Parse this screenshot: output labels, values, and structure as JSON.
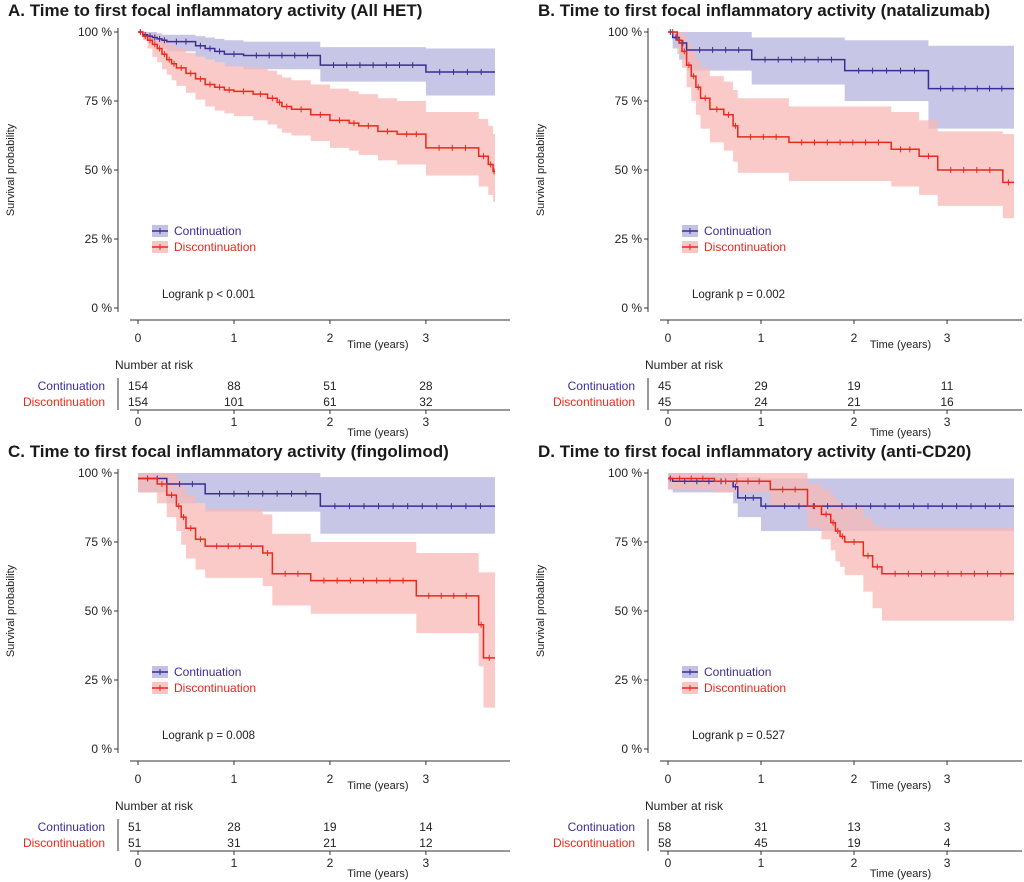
{
  "colors": {
    "continuation": "#3b2d96",
    "continuation_band": "#b4b3df",
    "discontinuation": "#e8291c",
    "discontinuation_band": "#f7b8b4",
    "axis": "#333333"
  },
  "chart_data": [
    {
      "type": "line",
      "title": "A. Time to first focal inflammatory activity (All HET)",
      "xlabel": "Time (years)",
      "ylabel": "Survival probability",
      "xlim": [
        0,
        3.75
      ],
      "ylim": [
        0,
        100
      ],
      "xticks": [
        "0",
        "1",
        "2",
        "3"
      ],
      "yticks": [
        "0 %",
        "25 %",
        "50 %",
        "75 %",
        "100 %"
      ],
      "legend": [
        "Continuation",
        "Discontinuation"
      ],
      "annotation": "Logrank p < 0.001",
      "risk_table": {
        "header": "Number at risk",
        "rows": [
          {
            "label": "Continuation",
            "values": [
              "154",
              "88",
              "51",
              "28"
            ]
          },
          {
            "label": "Discontinuation",
            "values": [
              "154",
              "101",
              "61",
              "32"
            ]
          }
        ]
      },
      "series": [
        {
          "name": "Continuation",
          "x": [
            0,
            0.05,
            0.1,
            0.15,
            0.2,
            0.25,
            0.3,
            0.6,
            0.7,
            0.8,
            0.9,
            1.1,
            1.9,
            3.0
          ],
          "y": [
            100,
            99,
            98.5,
            98,
            97.5,
            97,
            96.5,
            95,
            94,
            93,
            92,
            91.5,
            88,
            85.5
          ],
          "lower": [
            100,
            98,
            97,
            96,
            95,
            94,
            93,
            91,
            90,
            89,
            87.5,
            86.5,
            82,
            77
          ],
          "upper": [
            100,
            100,
            100,
            100,
            99.5,
            99,
            99,
            98.5,
            98,
            97.5,
            97,
            96.5,
            94.5,
            94
          ]
        },
        {
          "name": "Discontinuation",
          "x": [
            0,
            0.05,
            0.1,
            0.15,
            0.2,
            0.25,
            0.3,
            0.35,
            0.4,
            0.5,
            0.6,
            0.7,
            0.8,
            0.9,
            1.0,
            1.2,
            1.35,
            1.45,
            1.5,
            1.6,
            1.8,
            2.0,
            2.2,
            2.3,
            2.5,
            2.7,
            3.0,
            3.55,
            3.65,
            3.7
          ],
          "y": [
            100,
            98.5,
            97,
            95.5,
            94,
            92,
            90,
            88.5,
            87,
            85,
            83,
            81,
            80,
            79,
            78.5,
            77.5,
            76,
            74.5,
            73,
            72,
            70,
            68,
            67,
            66,
            64,
            63,
            58,
            55,
            52,
            49.5
          ],
          "lower": [
            100,
            97,
            94,
            91,
            89,
            86.5,
            84.5,
            82.5,
            80.5,
            78,
            75.5,
            73,
            71.5,
            70.5,
            69.5,
            68,
            66.5,
            65,
            63.5,
            62.5,
            60.5,
            58,
            57,
            55.5,
            53.5,
            52,
            48,
            44,
            41,
            38.5
          ],
          "upper": [
            100,
            100,
            99.5,
            99,
            98.5,
            97.5,
            96,
            95,
            94,
            92.5,
            91,
            90,
            89,
            88,
            87.5,
            87,
            86,
            84.5,
            83.5,
            82.5,
            81,
            79.5,
            78.5,
            77.5,
            76,
            75,
            71,
            68.5,
            66,
            63
          ]
        }
      ]
    },
    {
      "type": "line",
      "title": "B. Time to first focal inflammatory activity (natalizumab)",
      "xlabel": "Time (years)",
      "ylabel": "Survival probability",
      "xlim": [
        0,
        3.75
      ],
      "ylim": [
        0,
        100
      ],
      "xticks": [
        "0",
        "1",
        "2",
        "3"
      ],
      "yticks": [
        "0 %",
        "25 %",
        "50 %",
        "75 %",
        "100 %"
      ],
      "legend": [
        "Continuation",
        "Discontinuation"
      ],
      "annotation": "Logrank p = 0.002",
      "risk_table": {
        "header": "Number at risk",
        "rows": [
          {
            "label": "Continuation",
            "values": [
              "45",
              "29",
              "19",
              "11"
            ]
          },
          {
            "label": "Discontinuation",
            "values": [
              "45",
              "24",
              "21",
              "16"
            ]
          }
        ]
      },
      "series": [
        {
          "name": "Continuation",
          "x": [
            0,
            0.05,
            0.12,
            0.2,
            0.9,
            1.9,
            2.8
          ],
          "y": [
            100,
            98,
            96,
            93.5,
            90,
            86,
            79.5
          ],
          "lower": [
            100,
            94,
            90,
            86,
            81,
            75,
            65
          ],
          "upper": [
            100,
            100,
            100,
            100,
            98,
            97,
            95
          ]
        },
        {
          "name": "Discontinuation",
          "x": [
            0,
            0.1,
            0.15,
            0.2,
            0.25,
            0.3,
            0.35,
            0.45,
            0.6,
            0.7,
            0.75,
            1.3,
            2.4,
            2.7,
            2.9,
            3.6
          ],
          "y": [
            100,
            97,
            93,
            88,
            84,
            80,
            76,
            72,
            70,
            66,
            62,
            60,
            57.5,
            55,
            50,
            45.5
          ],
          "lower": [
            100,
            92,
            87,
            80,
            75,
            70,
            65,
            60,
            57,
            53,
            49,
            46,
            44,
            41,
            37,
            32.5
          ],
          "upper": [
            100,
            100,
            99,
            96,
            93,
            90,
            87,
            84,
            82,
            79,
            76,
            73,
            71,
            68,
            64,
            63
          ]
        }
      ]
    },
    {
      "type": "line",
      "title": "C. Time to first focal inflammatory activity (fingolimod)",
      "xlabel": "Time (years)",
      "ylabel": "Survival probability",
      "xlim": [
        0,
        3.75
      ],
      "ylim": [
        0,
        100
      ],
      "xticks": [
        "0",
        "1",
        "2",
        "3"
      ],
      "yticks": [
        "0 %",
        "25 %",
        "50 %",
        "75 %",
        "100 %"
      ],
      "legend": [
        "Continuation",
        "Discontinuation"
      ],
      "annotation": "Logrank p = 0.008",
      "risk_table": {
        "header": "Number at risk",
        "rows": [
          {
            "label": "Continuation",
            "values": [
              "51",
              "28",
              "19",
              "14"
            ]
          },
          {
            "label": "Discontinuation",
            "values": [
              "51",
              "31",
              "21",
              "12"
            ]
          }
        ]
      },
      "series": [
        {
          "name": "Continuation",
          "x": [
            0,
            0.3,
            0.7,
            1.9
          ],
          "y": [
            98,
            96,
            92.5,
            88
          ],
          "lower": [
            93,
            89,
            86,
            78
          ],
          "upper": [
            100,
            100,
            100,
            98.5
          ]
        },
        {
          "name": "Discontinuation",
          "x": [
            0,
            0.2,
            0.3,
            0.4,
            0.45,
            0.5,
            0.6,
            0.7,
            1.3,
            1.4,
            1.8,
            2.9,
            3.55,
            3.6
          ],
          "y": [
            98,
            96,
            92,
            88,
            84,
            80,
            76,
            73.5,
            71,
            63.5,
            61,
            55.5,
            45,
            33
          ],
          "lower": [
            93,
            89,
            84,
            79,
            74,
            69,
            65,
            62,
            59,
            52,
            49,
            42,
            30,
            15
          ],
          "upper": [
            100,
            100,
            100,
            98,
            95,
            92,
            89,
            87,
            85,
            78,
            75,
            71,
            64,
            64
          ]
        }
      ]
    },
    {
      "type": "line",
      "title": "D. Time to first focal inflammatory activity (anti-CD20)",
      "xlabel": "Time (years)",
      "ylabel": "Survival probability",
      "xlim": [
        0,
        3.75
      ],
      "ylim": [
        0,
        100
      ],
      "xticks": [
        "0",
        "1",
        "2",
        "3"
      ],
      "yticks": [
        "0 %",
        "25 %",
        "50 %",
        "75 %",
        "100 %"
      ],
      "legend": [
        "Continuation",
        "Discontinuation"
      ],
      "annotation": "Logrank p = 0.527",
      "risk_table": {
        "header": "Number at risk",
        "rows": [
          {
            "label": "Continuation",
            "values": [
              "58",
              "31",
              "13",
              "3"
            ]
          },
          {
            "label": "Discontinuation",
            "values": [
              "58",
              "45",
              "19",
              "4"
            ]
          }
        ]
      },
      "series": [
        {
          "name": "Continuation",
          "x": [
            0,
            0.05,
            0.7,
            0.75,
            1.0,
            1.1
          ],
          "y": [
            98,
            97,
            95,
            91,
            88,
            88
          ],
          "lower": [
            94,
            93,
            89,
            84,
            79,
            79
          ],
          "upper": [
            100,
            100,
            100,
            98.5,
            98,
            98
          ]
        },
        {
          "name": "Discontinuation",
          "x": [
            0,
            0.5,
            1.1,
            1.5,
            1.65,
            1.75,
            1.8,
            1.85,
            1.9,
            2.1,
            2.2,
            2.3
          ],
          "y": [
            98,
            97,
            94,
            88,
            85,
            82,
            79,
            77,
            75,
            70,
            66,
            63.5
          ],
          "lower": [
            94,
            93,
            88,
            80,
            76,
            72,
            68,
            66,
            63,
            57,
            51,
            46.5
          ],
          "upper": [
            100,
            100,
            100,
            96,
            94,
            92,
            90,
            89,
            88,
            84,
            81,
            80
          ]
        }
      ]
    }
  ]
}
